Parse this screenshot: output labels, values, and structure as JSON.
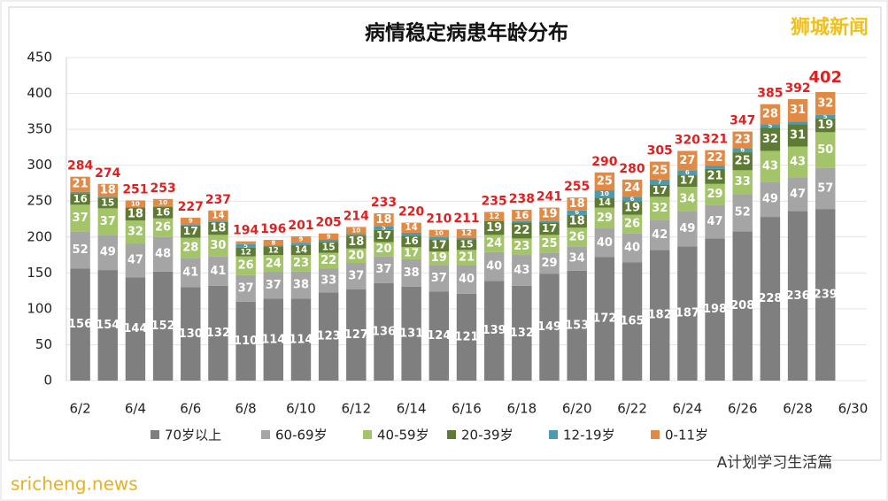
{
  "chart_data": {
    "type": "stacked_bar",
    "title": "病情稳定病患年龄分布",
    "categories": [
      "6/2",
      null,
      "6/4",
      null,
      "6/6",
      null,
      "6/8",
      null,
      "6/10",
      null,
      "6/12",
      null,
      "6/14",
      null,
      "6/16",
      null,
      "6/18",
      null,
      "6/20",
      null,
      "6/22",
      null,
      "6/24",
      null,
      "6/26",
      null,
      "6/28",
      null,
      "6/30"
    ],
    "series": [
      {
        "name": "70岁以上",
        "color": "#7f7f7f",
        "values": [
          156,
          154,
          144,
          152,
          130,
          132,
          110,
          114,
          114,
          123,
          127,
          136,
          131,
          124,
          121,
          139,
          132,
          149,
          153,
          172,
          165,
          182,
          187,
          198,
          208,
          228,
          236,
          239,
          null
        ]
      },
      {
        "name": "60-69岁",
        "color": "#a5a5a5",
        "values": [
          52,
          49,
          47,
          48,
          41,
          41,
          37,
          37,
          38,
          33,
          37,
          37,
          38,
          37,
          40,
          40,
          43,
          29,
          34,
          40,
          40,
          42,
          49,
          47,
          52,
          49,
          47,
          57,
          null
        ]
      },
      {
        "name": "40-59岁",
        "color": "#a3c468",
        "values": [
          37,
          37,
          32,
          26,
          28,
          30,
          26,
          24,
          23,
          22,
          20,
          20,
          17,
          19,
          21,
          24,
          23,
          25,
          26,
          29,
          26,
          32,
          34,
          29,
          33,
          43,
          43,
          50,
          null
        ]
      },
      {
        "name": "20-39岁",
        "color": "#5f7a33",
        "values": [
          16,
          15,
          18,
          16,
          17,
          18,
          12,
          12,
          14,
          15,
          18,
          17,
          16,
          17,
          15,
          19,
          22,
          17,
          18,
          14,
          19,
          17,
          17,
          21,
          25,
          32,
          31,
          19,
          null
        ]
      },
      {
        "name": "12-19岁",
        "color": "#4a9bb0",
        "values": [
          2,
          1,
          0,
          1,
          2,
          2,
          5,
          1,
          3,
          3,
          2,
          5,
          4,
          3,
          2,
          1,
          2,
          2,
          6,
          10,
          6,
          7,
          6,
          4,
          6,
          5,
          4,
          5,
          null
        ]
      },
      {
        "name": "0-11岁",
        "color": "#e08a45",
        "values": [
          21,
          18,
          10,
          10,
          9,
          14,
          4,
          8,
          9,
          9,
          10,
          18,
          14,
          10,
          12,
          12,
          16,
          19,
          18,
          25,
          24,
          25,
          27,
          22,
          23,
          28,
          31,
          32,
          null
        ]
      }
    ],
    "totals": [
      284,
      274,
      251,
      253,
      227,
      237,
      194,
      196,
      201,
      205,
      214,
      233,
      220,
      210,
      211,
      235,
      238,
      241,
      255,
      290,
      280,
      305,
      320,
      321,
      347,
      385,
      392,
      402,
      null
    ],
    "ylim": [
      0,
      450
    ],
    "yticks": [
      0,
      50,
      100,
      150,
      200,
      250,
      300,
      350,
      400,
      450
    ],
    "grid": true,
    "legend": "bottom",
    "annotations": [
      "狮城新闻",
      "sricheng.news",
      "A计划学习生活篇"
    ]
  }
}
